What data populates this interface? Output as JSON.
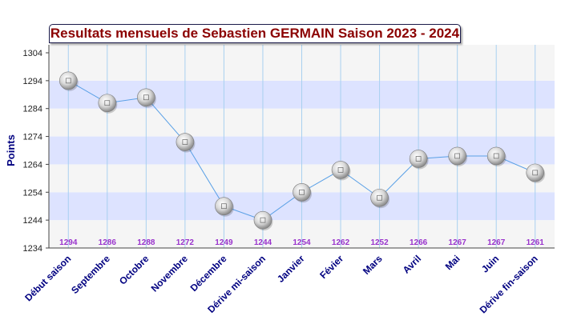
{
  "chart_data": {
    "type": "line",
    "title": "Resultats mensuels de Sebastien GERMAIN Saison 2023 - 2024",
    "xlabel": "",
    "ylabel": "Points",
    "categories": [
      "Début saison",
      "Septembre",
      "Octobre",
      "Novembre",
      "Décembre",
      "Dérive mi-saison",
      "Janvier",
      "Févier",
      "Mars",
      "Avril",
      "Mai",
      "Juin",
      "Dérive fin-saison"
    ],
    "values": [
      1294,
      1286,
      1288,
      1272,
      1249,
      1244,
      1254,
      1262,
      1252,
      1266,
      1267,
      1267,
      1261
    ],
    "value_labels": [
      "1294",
      "1286",
      "1288",
      "1272",
      "1249",
      "1244",
      "1254",
      "1262",
      "1252",
      "1266",
      "1267",
      "1267",
      "1261"
    ],
    "yticks": [
      "1304",
      "1294",
      "1284",
      "1274",
      "1264",
      "1254",
      "1244",
      "1234"
    ],
    "ylim": [
      1234,
      1304
    ],
    "grid": true,
    "legend": "none",
    "colors": {
      "line": "#5aa0e6",
      "band": "#dde3ff",
      "band_alt": "#f5f5f5",
      "title": "#8b0000",
      "category_label": "#000080",
      "value_label": "#9932cc",
      "axis_label": "#000080"
    },
    "marker": "silver-ball-icon"
  }
}
